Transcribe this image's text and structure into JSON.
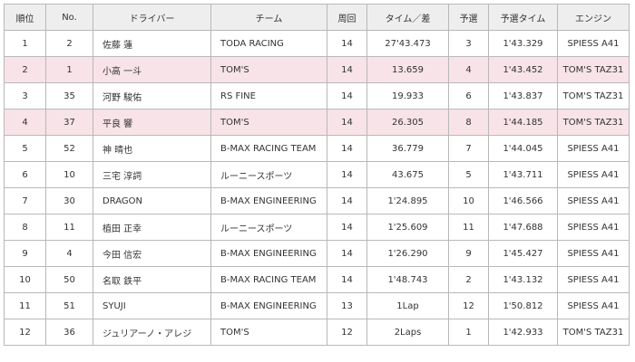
{
  "table": {
    "headers": [
      "順位",
      "No.",
      "ドライバー",
      "チーム",
      "周回",
      "タイム／差",
      "予選",
      "予選タイム",
      "エンジン"
    ],
    "rows": [
      {
        "highlight": false,
        "cells": [
          "1",
          "2",
          "佐藤 蓮",
          "TODA RACING",
          "14",
          "27'43.473",
          "3",
          "1'43.329",
          "SPIESS A41"
        ]
      },
      {
        "highlight": true,
        "cells": [
          "2",
          "1",
          "小高 一斗",
          "TOM'S",
          "14",
          "13.659",
          "4",
          "1'43.452",
          "TOM'S TAZ31"
        ]
      },
      {
        "highlight": false,
        "cells": [
          "3",
          "35",
          "河野 駿佑",
          "RS FINE",
          "14",
          "19.933",
          "6",
          "1'43.837",
          "TOM'S TAZ31"
        ]
      },
      {
        "highlight": true,
        "cells": [
          "4",
          "37",
          "平良 響",
          "TOM'S",
          "14",
          "26.305",
          "8",
          "1'44.185",
          "TOM'S TAZ31"
        ]
      },
      {
        "highlight": false,
        "cells": [
          "5",
          "52",
          "神 晴也",
          "B-MAX RACING TEAM",
          "14",
          "36.779",
          "7",
          "1'44.045",
          "SPIESS A41"
        ]
      },
      {
        "highlight": false,
        "cells": [
          "6",
          "10",
          "三宅 淳詞",
          "ルーニースポーツ",
          "14",
          "43.675",
          "5",
          "1'43.711",
          "SPIESS A41"
        ]
      },
      {
        "highlight": false,
        "cells": [
          "7",
          "30",
          "DRAGON",
          "B-MAX ENGINEERING",
          "14",
          "1'24.895",
          "10",
          "1'46.566",
          "SPIESS A41"
        ]
      },
      {
        "highlight": false,
        "cells": [
          "8",
          "11",
          "植田 正幸",
          "ルーニースポーツ",
          "14",
          "1'25.609",
          "11",
          "1'47.688",
          "SPIESS A41"
        ]
      },
      {
        "highlight": false,
        "cells": [
          "9",
          "4",
          "今田 信宏",
          "B-MAX ENGINEERING",
          "14",
          "1'26.290",
          "9",
          "1'45.427",
          "SPIESS A41"
        ]
      },
      {
        "highlight": false,
        "cells": [
          "10",
          "50",
          "名取 鉄平",
          "B-MAX RACING TEAM",
          "14",
          "1'48.743",
          "2",
          "1'43.132",
          "SPIESS A41"
        ]
      },
      {
        "highlight": false,
        "cells": [
          "11",
          "51",
          "SYUJI",
          "B-MAX ENGINEERING",
          "13",
          "1Lap",
          "12",
          "1'50.812",
          "SPIESS A41"
        ]
      },
      {
        "highlight": false,
        "cells": [
          "12",
          "36",
          "ジュリアーノ・アレジ",
          "TOM'S",
          "12",
          "2Laps",
          "1",
          "1'42.933",
          "TOM'S TAZ31"
        ]
      }
    ]
  },
  "colors": {
    "highlight_row": "#f7e3e8",
    "header_bg": "#eeeeee",
    "border": "#b8b8b8"
  }
}
